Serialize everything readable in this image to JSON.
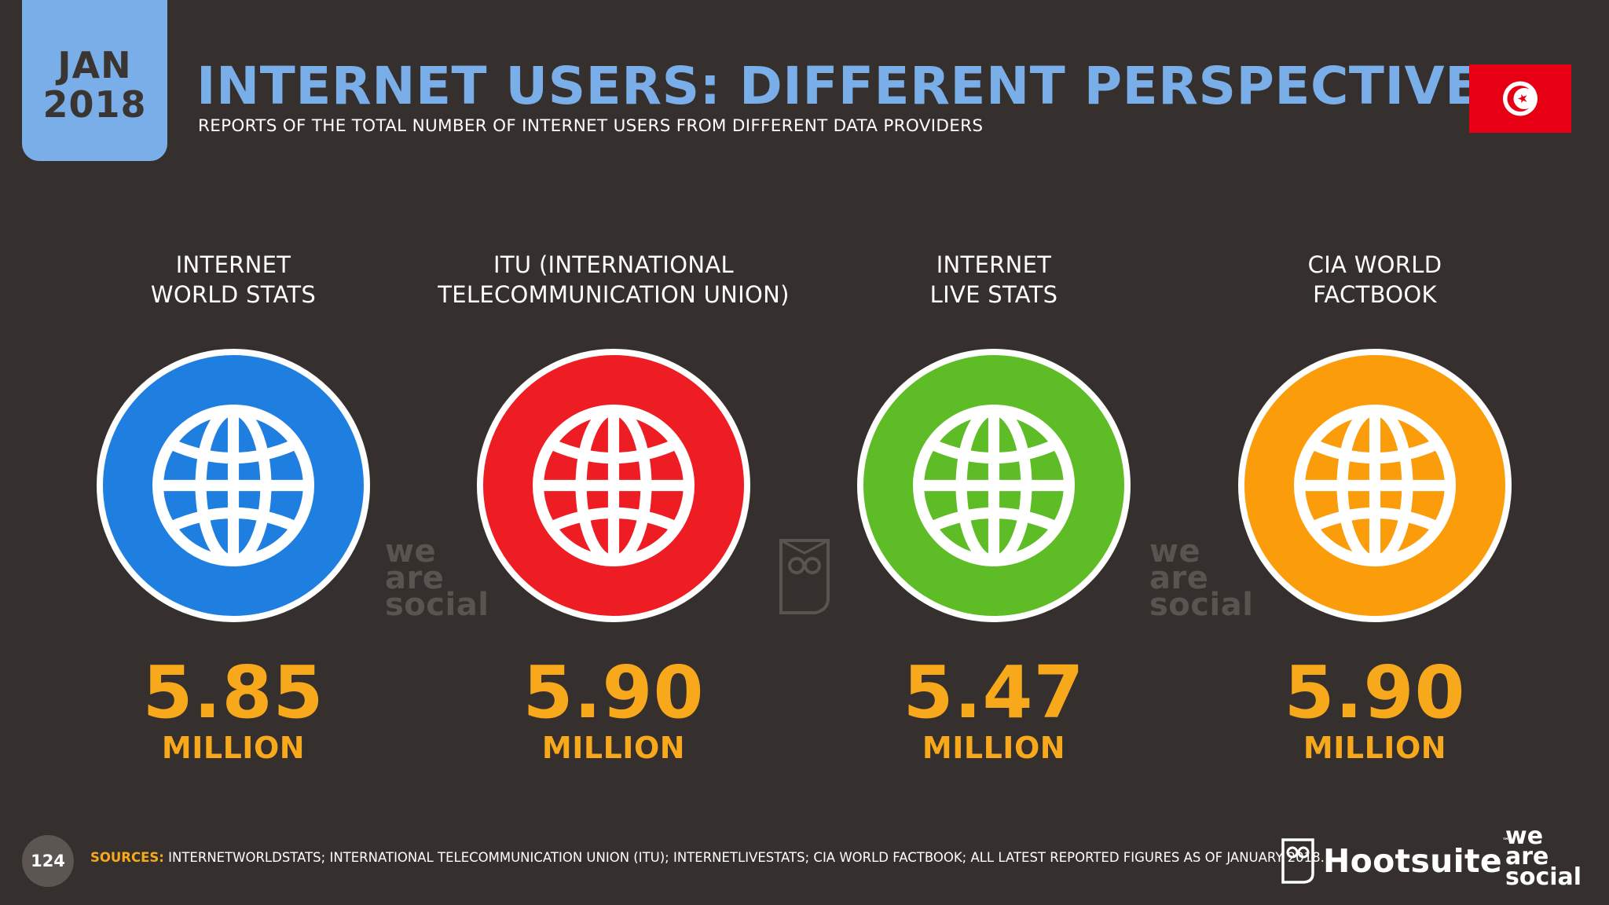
{
  "header": {
    "date_month": "JAN",
    "date_year": "2018",
    "title": "INTERNET USERS: DIFFERENT PERSPECTIVES",
    "subtitle": "REPORTS OF THE TOTAL NUMBER OF INTERNET USERS FROM DIFFERENT DATA PROVIDERS",
    "flag_icon": "tunisia-flag-icon"
  },
  "providers": [
    {
      "label": "INTERNET\nWORLD STATS",
      "value": "5.85",
      "unit": "MILLION",
      "color": "#1f7fe0",
      "icon": "globe-icon"
    },
    {
      "label": "ITU (INTERNATIONAL\nTELECOMMUNICATION UNION)",
      "value": "5.90",
      "unit": "MILLION",
      "color": "#ee1c23",
      "icon": "globe-icon"
    },
    {
      "label": "INTERNET\nLIVE STATS",
      "value": "5.47",
      "unit": "MILLION",
      "color": "#5ebd26",
      "icon": "globe-icon"
    },
    {
      "label": "CIA WORLD\nFACTBOOK",
      "value": "5.90",
      "unit": "MILLION",
      "color": "#fb9c0b",
      "icon": "globe-icon"
    }
  ],
  "footer": {
    "page_number": "124",
    "sources_label": "SOURCES:",
    "sources_text": "INTERNETWORLDSTATS; INTERNATIONAL TELECOMMUNICATION UNION (ITU); INTERNETLIVESTATS; CIA WORLD FACTBOOK; ALL LATEST REPORTED FIGURES AS OF JANUARY 2018.",
    "brand_hootsuite": "Hootsuite",
    "brand_tm": "™",
    "brand_was_1": "we",
    "brand_was_2": "are",
    "brand_was_3": "social"
  },
  "watermarks": {
    "was_1": "we",
    "was_2": "are",
    "was_3": "social"
  },
  "colors": {
    "background": "#35302d",
    "accent_blue": "#7aaee8",
    "accent_orange": "#f7a81b",
    "flag_red": "#e70013"
  }
}
